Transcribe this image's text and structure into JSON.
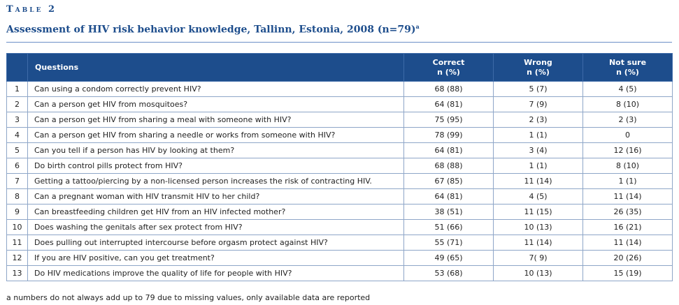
{
  "table_label": "Table 2",
  "title": "Assessment of HIV risk behavior knowledge, Tallinn, Estonia, 2008 (n=79)",
  "title_sup": "a",
  "columns": {
    "questions": "Questions",
    "correct_line1": "Correct",
    "correct_line2": "n (%)",
    "wrong_line1": "Wrong",
    "wrong_line2": "n (%)",
    "notsure_line1": "Not sure",
    "notsure_line2": "n (%)"
  },
  "rows": [
    {
      "num": "1",
      "question": "Can using a condom correctly prevent HIV?",
      "correct": "68 (88)",
      "wrong": "5 (7)",
      "not_sure": "4 (5)"
    },
    {
      "num": "2",
      "question": "Can a person get HIV from mosquitoes?",
      "correct": "64 (81)",
      "wrong": "7 (9)",
      "not_sure": "8 (10)"
    },
    {
      "num": "3",
      "question": "Can a person get HIV from sharing a meal with someone with HIV?",
      "correct": "75 (95)",
      "wrong": "2  (3)",
      "not_sure": "2 (3)"
    },
    {
      "num": "4",
      "question": "Can a person get HIV from sharing a needle or works from someone with HIV?",
      "correct": "78 (99)",
      "wrong": "1 (1)",
      "not_sure": "0"
    },
    {
      "num": "5",
      "question": "Can you tell if a person has HIV by looking at them?",
      "correct": "64 (81)",
      "wrong": "3 (4)",
      "not_sure": "12 (16)"
    },
    {
      "num": "6",
      "question": "Do birth control pills protect from HIV?",
      "correct": "68 (88)",
      "wrong": "1 (1)",
      "not_sure": "8 (10)"
    },
    {
      "num": "7",
      "question": "Getting a tattoo/piercing by a non-licensed person increases the risk of contracting HIV.",
      "correct": "67 (85)",
      "wrong": "11 (14)",
      "not_sure": "1 (1)"
    },
    {
      "num": "8",
      "question": "Can a pregnant woman with HIV transmit HIV to her child?",
      "correct": "64 (81)",
      "wrong": "4 (5)",
      "not_sure": "11 (14)"
    },
    {
      "num": "9",
      "question": "Can breastfeeding children get HIV from an HIV infected mother?",
      "correct": "38 (51)",
      "wrong": "11 (15)",
      "not_sure": "26 (35)"
    },
    {
      "num": "10",
      "question": "Does washing the genitals after sex protect from HIV?",
      "correct": "51 (66)",
      "wrong": "10 (13)",
      "not_sure": "16 (21)"
    },
    {
      "num": "11",
      "question": "Does pulling out interrupted intercourse before orgasm protect against HIV?",
      "correct": "55 (71)",
      "wrong": "11 (14)",
      "not_sure": "11 (14)"
    },
    {
      "num": "12",
      "question": "If you are HIV positive, can you get treatment?",
      "correct": "49 (65)",
      "wrong": "7( 9)",
      "not_sure": "20 (26)"
    },
    {
      "num": "13",
      "question": "Do HIV medications improve the quality of life for people with HIV?",
      "correct": "53 (68)",
      "wrong": "10 (13)",
      "not_sure": "15 (19)"
    }
  ],
  "footnote": "a numbers do not always add up to 79 due to missing values, only available data are reported",
  "colors": {
    "header_bg": "#1d4d8c",
    "title": "#1d4d8c",
    "border": "#8ea6c8"
  }
}
